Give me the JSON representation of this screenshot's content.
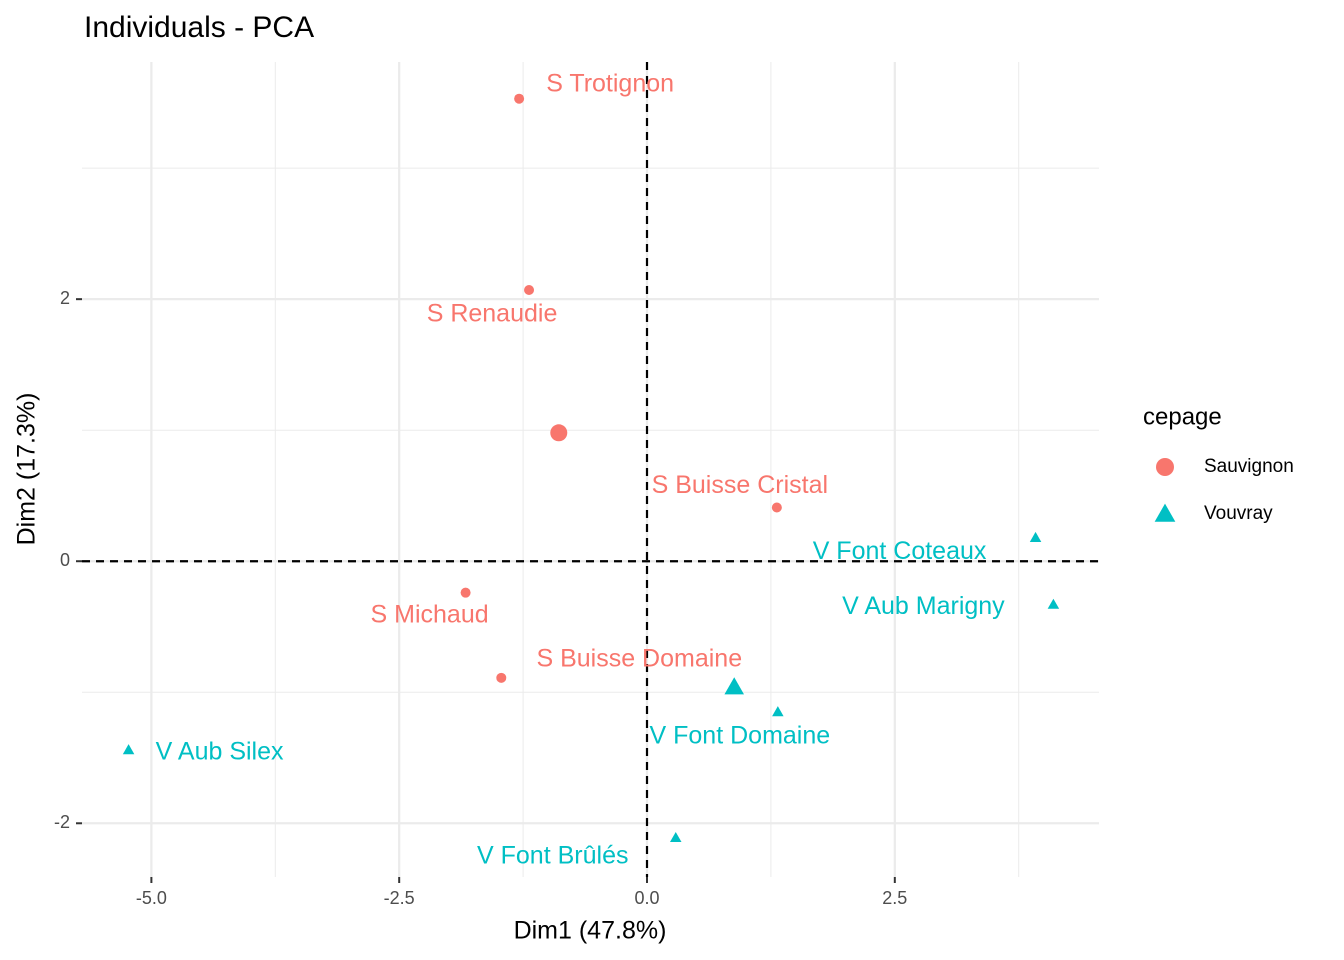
{
  "chart_data": {
    "type": "scatter",
    "title": "Individuals - PCA",
    "x_label": "Dim1 (47.8%)",
    "y_label": "Dim2 (17.3%)",
    "xlim": [
      -5.7,
      4.56
    ],
    "ylim": [
      -2.41,
      3.81
    ],
    "xticks": [
      {
        "value": -5,
        "label": "-5.0"
      },
      {
        "value": -2.5,
        "label": "-2.5"
      },
      {
        "value": 0,
        "label": "0.0"
      },
      {
        "value": 2.5,
        "label": "2.5"
      }
    ],
    "yticks": [
      -2,
      0,
      2
    ],
    "grid": true,
    "legend_title": "cepage",
    "legend_position": "right",
    "series": [
      {
        "name": "Sauvignon",
        "color": "#f8766d",
        "shape": "circle",
        "labels": [
          "S Michaud",
          "S Renaudie",
          "S Trotignon",
          "S Buisse Domaine",
          "S Buisse Cristal"
        ],
        "x": [
          -1.83,
          -1.19,
          -1.29,
          -1.47,
          1.31
        ],
        "values": [
          -0.24,
          2.07,
          3.53,
          -0.89,
          0.41
        ],
        "centroid_x": -0.89,
        "centroid_y": 0.98
      },
      {
        "name": "Vouvray",
        "color": "#00bfc4",
        "shape": "triangle",
        "labels": [
          "V Aub Silex",
          "V Aub Marigny",
          "V Font Domaine",
          "V Font Brûlés",
          "V Font Coteaux"
        ],
        "x": [
          -5.23,
          4.1,
          1.32,
          0.29,
          3.92
        ],
        "values": [
          -1.44,
          -0.33,
          -1.15,
          -2.11,
          0.18
        ],
        "centroid_x": 0.88,
        "centroid_y": -0.96
      }
    ]
  }
}
